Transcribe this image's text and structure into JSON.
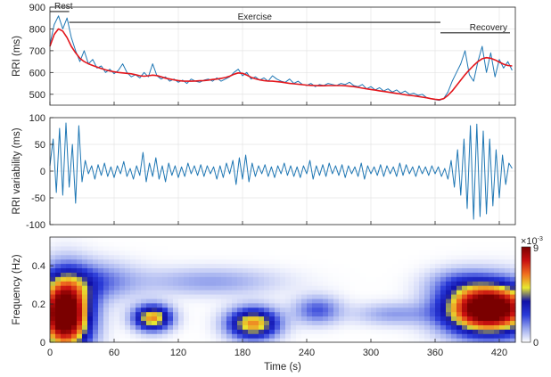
{
  "chart_data": [
    {
      "type": "line",
      "ylabel": "RRI (ms)",
      "xlim": [
        0,
        435
      ],
      "ylim": [
        450,
        900
      ],
      "xticks": [
        0,
        60,
        120,
        180,
        240,
        300,
        360,
        420
      ],
      "yticks": [
        500,
        600,
        700,
        800,
        900
      ],
      "grid": true,
      "annotations": [
        {
          "text": "Rest",
          "x_start": 0,
          "x_end": 18,
          "y": 880
        },
        {
          "text": "Exercise",
          "x_start": 18,
          "x_end": 365,
          "y": 830
        },
        {
          "text": "Recovery",
          "x_start": 365,
          "x_end": 430,
          "y": 782
        }
      ],
      "series": [
        {
          "color": "#1f77b4",
          "x": [
            0,
            4,
            8,
            12,
            16,
            20,
            24,
            28,
            32,
            36,
            40,
            44,
            48,
            52,
            56,
            60,
            64,
            68,
            72,
            76,
            80,
            84,
            88,
            92,
            96,
            100,
            104,
            108,
            112,
            116,
            120,
            124,
            128,
            132,
            136,
            140,
            144,
            148,
            152,
            156,
            160,
            164,
            168,
            172,
            176,
            180,
            184,
            188,
            192,
            196,
            200,
            204,
            208,
            212,
            216,
            220,
            224,
            228,
            232,
            236,
            240,
            244,
            248,
            252,
            256,
            260,
            264,
            268,
            272,
            276,
            280,
            284,
            288,
            292,
            296,
            300,
            304,
            308,
            312,
            316,
            320,
            324,
            328,
            332,
            336,
            340,
            344,
            348,
            352,
            356,
            360,
            364,
            368,
            372,
            376,
            380,
            384,
            388,
            392,
            396,
            400,
            404,
            408,
            412,
            416,
            420,
            424,
            428,
            432
          ],
          "y": [
            730,
            820,
            860,
            800,
            850,
            760,
            700,
            650,
            700,
            640,
            660,
            620,
            630,
            600,
            615,
            595,
            610,
            640,
            600,
            580,
            590,
            575,
            600,
            580,
            640,
            585,
            570,
            580,
            560,
            570,
            555,
            565,
            550,
            570,
            560,
            555,
            565,
            570,
            560,
            575,
            560,
            570,
            580,
            600,
            615,
            585,
            600,
            570,
            580,
            565,
            575,
            560,
            585,
            570,
            560,
            555,
            570,
            550,
            560,
            545,
            540,
            550,
            535,
            545,
            540,
            550,
            545,
            540,
            550,
            545,
            555,
            540,
            535,
            545,
            525,
            535,
            520,
            530,
            515,
            525,
            510,
            520,
            505,
            515,
            500,
            505,
            495,
            500,
            485,
            480,
            475,
            472,
            480,
            510,
            560,
            600,
            640,
            700,
            590,
            560,
            650,
            720,
            600,
            690,
            580,
            660,
            620,
            650,
            610
          ]
        },
        {
          "color": "#e3161c",
          "x": [
            0,
            4,
            8,
            12,
            16,
            20,
            24,
            28,
            32,
            36,
            40,
            44,
            48,
            52,
            56,
            60,
            64,
            68,
            72,
            76,
            80,
            84,
            88,
            92,
            96,
            100,
            104,
            108,
            112,
            116,
            120,
            124,
            128,
            132,
            136,
            140,
            144,
            148,
            152,
            156,
            160,
            164,
            168,
            172,
            176,
            180,
            184,
            188,
            192,
            196,
            200,
            204,
            208,
            212,
            216,
            220,
            224,
            228,
            232,
            236,
            240,
            244,
            248,
            252,
            256,
            260,
            264,
            268,
            272,
            276,
            280,
            284,
            288,
            292,
            296,
            300,
            304,
            308,
            312,
            316,
            320,
            324,
            328,
            332,
            336,
            340,
            344,
            348,
            352,
            356,
            360,
            364,
            368,
            372,
            376,
            380,
            384,
            388,
            392,
            396,
            400,
            404,
            408,
            412,
            416,
            420,
            424,
            428,
            432
          ],
          "y": [
            720,
            775,
            800,
            790,
            760,
            720,
            690,
            665,
            650,
            640,
            632,
            625,
            618,
            612,
            607,
            603,
            600,
            598,
            596,
            594,
            590,
            585,
            583,
            585,
            588,
            586,
            580,
            574,
            570,
            566,
            563,
            561,
            560,
            560,
            561,
            562,
            563,
            565,
            568,
            570,
            573,
            577,
            583,
            592,
            598,
            596,
            588,
            578,
            571,
            566,
            563,
            561,
            560,
            558,
            556,
            553,
            550,
            548,
            546,
            544,
            542,
            541,
            540,
            539,
            539,
            540,
            540,
            540,
            540,
            539,
            537,
            535,
            532,
            528,
            525,
            522,
            519,
            516,
            513,
            510,
            507,
            504,
            501,
            498,
            495,
            493,
            490,
            487,
            484,
            480,
            477,
            475,
            480,
            495,
            515,
            540,
            565,
            590,
            612,
            632,
            650,
            663,
            668,
            665,
            658,
            648,
            638,
            632,
            630
          ]
        }
      ]
    },
    {
      "type": "line",
      "ylabel": "RRI variability (ms)",
      "xlim": [
        0,
        435
      ],
      "ylim": [
        -100,
        100
      ],
      "xticks": [
        0,
        60,
        120,
        180,
        240,
        300,
        360,
        420
      ],
      "yticks": [
        -100,
        -50,
        0,
        50,
        100
      ],
      "grid": true,
      "series": [
        {
          "color": "#1f77b4",
          "x": [
            0,
            3,
            6,
            9,
            12,
            15,
            18,
            21,
            24,
            27,
            30,
            33,
            36,
            39,
            42,
            45,
            48,
            51,
            54,
            57,
            60,
            63,
            66,
            69,
            72,
            75,
            78,
            81,
            84,
            87,
            90,
            93,
            96,
            99,
            102,
            105,
            108,
            111,
            114,
            117,
            120,
            123,
            126,
            129,
            132,
            135,
            138,
            141,
            144,
            147,
            150,
            153,
            156,
            159,
            162,
            165,
            168,
            171,
            174,
            177,
            180,
            183,
            186,
            189,
            192,
            195,
            198,
            201,
            204,
            207,
            210,
            213,
            216,
            219,
            222,
            225,
            228,
            231,
            234,
            237,
            240,
            243,
            246,
            249,
            252,
            255,
            258,
            261,
            264,
            267,
            270,
            273,
            276,
            279,
            282,
            285,
            288,
            291,
            294,
            297,
            300,
            303,
            306,
            309,
            312,
            315,
            318,
            321,
            324,
            327,
            330,
            333,
            336,
            339,
            342,
            345,
            348,
            351,
            354,
            357,
            360,
            363,
            366,
            369,
            372,
            375,
            378,
            381,
            384,
            387,
            390,
            393,
            396,
            399,
            402,
            405,
            408,
            411,
            414,
            417,
            420,
            423,
            426,
            429,
            432
          ],
          "y": [
            10,
            60,
            -40,
            80,
            -45,
            90,
            -30,
            50,
            -60,
            85,
            -20,
            20,
            -5,
            10,
            -15,
            12,
            -8,
            15,
            -10,
            8,
            -12,
            10,
            -5,
            18,
            -10,
            5,
            -15,
            10,
            -8,
            35,
            -20,
            15,
            -10,
            25,
            -15,
            10,
            -20,
            15,
            -8,
            10,
            -12,
            8,
            -10,
            15,
            -5,
            10,
            -8,
            12,
            -10,
            10,
            -5,
            8,
            -15,
            10,
            -12,
            15,
            -5,
            20,
            -25,
            25,
            -15,
            30,
            -20,
            15,
            -10,
            10,
            -5,
            12,
            -10,
            8,
            -12,
            10,
            -5,
            15,
            -8,
            10,
            -10,
            8,
            -12,
            10,
            -5,
            20,
            -15,
            10,
            -8,
            12,
            -10,
            15,
            -5,
            10,
            -8,
            12,
            -12,
            10,
            -5,
            8,
            -10,
            15,
            -15,
            10,
            -5,
            8,
            -8,
            12,
            -10,
            10,
            -5,
            8,
            -10,
            15,
            -8,
            12,
            -5,
            8,
            -10,
            10,
            -5,
            8,
            -8,
            10,
            -5,
            8,
            -10,
            5,
            -15,
            20,
            -30,
            40,
            -45,
            60,
            -70,
            85,
            -90,
            88,
            -85,
            75,
            -80,
            60,
            -65,
            40,
            -50,
            30,
            -25,
            15,
            5
          ]
        }
      ]
    },
    {
      "type": "heatmap",
      "ylabel": "Frequency (Hz)",
      "xlabel": "Time (s)",
      "xlim": [
        0,
        435
      ],
      "ylim": [
        0,
        0.55
      ],
      "xticks": [
        0,
        60,
        120,
        180,
        240,
        300,
        360,
        420
      ],
      "yticks": [
        0,
        0.2,
        0.4
      ],
      "colorbar": {
        "min_label": "0",
        "max_label": "9",
        "scale_label": "×10",
        "scale_exponent": "-3",
        "colors": [
          "#ffffff",
          "#9aa8ee",
          "#2a3bd8",
          "#1010a8",
          "#e8e830",
          "#f07020",
          "#c81010",
          "#7a0000"
        ]
      },
      "blobs": [
        {
          "t": 14,
          "f": 0.15,
          "st": 16,
          "sf": 0.13,
          "amp": 1.0
        },
        {
          "t": 96,
          "f": 0.13,
          "st": 12,
          "sf": 0.045,
          "amp": 0.55
        },
        {
          "t": 190,
          "f": 0.1,
          "st": 16,
          "sf": 0.055,
          "amp": 0.55
        },
        {
          "t": 410,
          "f": 0.18,
          "st": 28,
          "sf": 0.09,
          "amp": 1.0
        },
        {
          "t": 40,
          "f": 0.32,
          "st": 28,
          "sf": 0.07,
          "amp": 0.18
        },
        {
          "t": 150,
          "f": 0.32,
          "st": 45,
          "sf": 0.05,
          "amp": 0.12
        },
        {
          "t": 250,
          "f": 0.17,
          "st": 15,
          "sf": 0.05,
          "amp": 0.2
        },
        {
          "t": 320,
          "f": 0.15,
          "st": 25,
          "sf": 0.04,
          "amp": 0.12
        },
        {
          "t": 380,
          "f": 0.32,
          "st": 20,
          "sf": 0.05,
          "amp": 0.1
        }
      ]
    }
  ]
}
